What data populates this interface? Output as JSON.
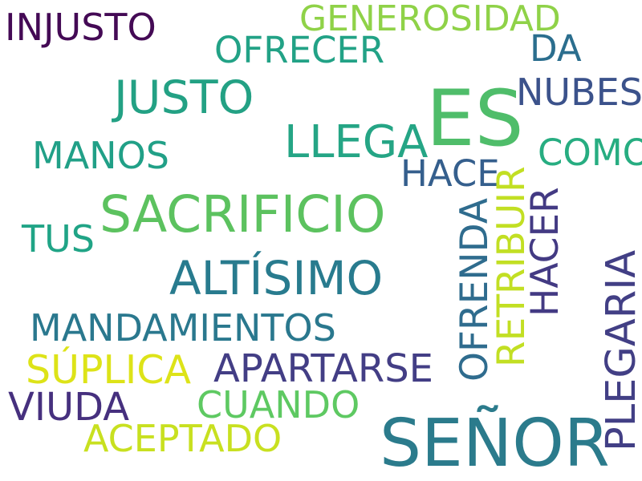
{
  "words": [
    {
      "text": "ES",
      "color": "#4fbd6a"
    },
    {
      "text": "SEÑOR",
      "color": "#2b7b8c"
    },
    {
      "text": "SACRIFICIO",
      "color": "#5cc25f"
    },
    {
      "text": "JUSTO",
      "color": "#23a184"
    },
    {
      "text": "ALTÍSIMO",
      "color": "#287b8e"
    },
    {
      "text": "LLEGA",
      "color": "#25a585"
    },
    {
      "text": "GENEROSIDAD",
      "color": "#8fd248"
    },
    {
      "text": "INJUSTO",
      "color": "#440a55"
    },
    {
      "text": "OFRECER",
      "color": "#22a286"
    },
    {
      "text": "DA",
      "color": "#2b6e8e"
    },
    {
      "text": "NUBES",
      "color": "#3b528b"
    },
    {
      "text": "COMO",
      "color": "#27ad81"
    },
    {
      "text": "MANOS",
      "color": "#21a087"
    },
    {
      "text": "HACE",
      "color": "#355f8d"
    },
    {
      "text": "TUS",
      "color": "#20a486"
    },
    {
      "text": "MANDAMIENTOS",
      "color": "#2a788e"
    },
    {
      "text": "SÚPLICA",
      "color": "#dde318"
    },
    {
      "text": "APARTARSE",
      "color": "#433e85"
    },
    {
      "text": "VIUDA",
      "color": "#46307e"
    },
    {
      "text": "CUANDO",
      "color": "#5ec962"
    },
    {
      "text": "ACEPTADO",
      "color": "#c8e020"
    },
    {
      "text": "OFRENDA",
      "color": "#2f6c8e"
    },
    {
      "text": "RETRIBUIR",
      "color": "#c2df23"
    },
    {
      "text": "HACER",
      "color": "#433a83"
    },
    {
      "text": "PLEGARIA",
      "color": "#423f85"
    }
  ]
}
